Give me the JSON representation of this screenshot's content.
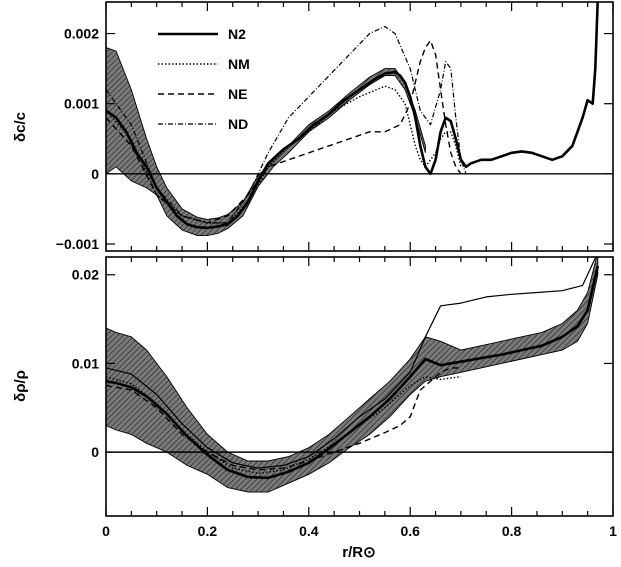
{
  "chart_data": [
    {
      "type": "line",
      "panel": "top",
      "ylabel": "δc/c",
      "ylim": [
        -0.0011,
        0.00245
      ],
      "yticks": [
        -0.001,
        0,
        0.001,
        0.002
      ],
      "ytick_labels": [
        "−0.001",
        "0",
        "0.001",
        "0.002"
      ],
      "zero_line": true,
      "legend": {
        "placement": "top-left",
        "entries": [
          "N2",
          "NM",
          "NE",
          "ND"
        ]
      },
      "band": {
        "name": "N2 uncertainty",
        "x": [
          0.0,
          0.02,
          0.05,
          0.08,
          0.1,
          0.12,
          0.15,
          0.18,
          0.2,
          0.22,
          0.24,
          0.27,
          0.3,
          0.33,
          0.36,
          0.4,
          0.44,
          0.48,
          0.52,
          0.55,
          0.57,
          0.59,
          0.61,
          0.63
        ],
        "upper": [
          0.0018,
          0.00175,
          0.0012,
          0.0005,
          0.0001,
          -0.0002,
          -0.0005,
          -0.00062,
          -0.00065,
          -0.00063,
          -0.00058,
          -0.0004,
          -3e-05,
          0.0002,
          0.0004,
          0.0007,
          0.0009,
          0.00115,
          0.00138,
          0.0015,
          0.0015,
          0.0013,
          0.0009,
          0.0004
        ],
        "lower": [
          0.0,
          0.0001,
          -0.0001,
          -0.0002,
          -0.0003,
          -0.0006,
          -0.0008,
          -0.00088,
          -0.00088,
          -0.00085,
          -0.00078,
          -0.0006,
          -0.00018,
          0.0001,
          0.0003,
          0.0006,
          0.0008,
          0.00105,
          0.00127,
          0.0014,
          0.0014,
          0.0012,
          0.0008,
          0.0003
        ]
      },
      "series": [
        {
          "name": "N2",
          "style": "solid-thick",
          "x": [
            0.0,
            0.02,
            0.04,
            0.06,
            0.08,
            0.1,
            0.12,
            0.14,
            0.16,
            0.18,
            0.2,
            0.22,
            0.24,
            0.26,
            0.28,
            0.3,
            0.32,
            0.35,
            0.38,
            0.41,
            0.44,
            0.47,
            0.5,
            0.53,
            0.55,
            0.57,
            0.58,
            0.59,
            0.6,
            0.61,
            0.62,
            0.63,
            0.64,
            0.65,
            0.66,
            0.67,
            0.68,
            0.69,
            0.7,
            0.71,
            0.72,
            0.74,
            0.76,
            0.78,
            0.8,
            0.82,
            0.84,
            0.86,
            0.88,
            0.9,
            0.92,
            0.94,
            0.95,
            0.96,
            0.965,
            0.97
          ],
          "y": [
            0.0009,
            0.0008,
            0.0006,
            0.0003,
            0.0001,
            -0.0002,
            -0.0004,
            -0.0006,
            -0.00072,
            -0.00076,
            -0.00077,
            -0.00075,
            -0.00072,
            -0.0006,
            -0.0004,
            -0.0001,
            0.00015,
            0.00035,
            0.0005,
            0.0007,
            0.00085,
            0.00105,
            0.0012,
            0.00135,
            0.00143,
            0.00145,
            0.0014,
            0.0013,
            0.0011,
            0.0008,
            0.0004,
            0.0001,
            0.0,
            0.0002,
            0.0006,
            0.0008,
            0.00075,
            0.0005,
            0.0002,
            0.0001,
            0.00015,
            0.0002,
            0.0002,
            0.00025,
            0.0003,
            0.00032,
            0.0003,
            0.00025,
            0.0002,
            0.00025,
            0.0004,
            0.0008,
            0.00105,
            0.001,
            0.0015,
            0.0025
          ]
        },
        {
          "name": "NM",
          "style": "dotted",
          "x": [
            0.0,
            0.05,
            0.1,
            0.15,
            0.2,
            0.24,
            0.28,
            0.32,
            0.36,
            0.4,
            0.45,
            0.5,
            0.55,
            0.57,
            0.59,
            0.61,
            0.62,
            0.63,
            0.64,
            0.65,
            0.66,
            0.67,
            0.68,
            0.69,
            0.7
          ],
          "y": [
            0.0009,
            0.0005,
            -0.0003,
            -0.0006,
            -0.0007,
            -0.0007,
            -0.0004,
            0.0001,
            0.0004,
            0.0006,
            0.0009,
            0.0011,
            0.00125,
            0.0012,
            0.001,
            0.0004,
            0.0002,
            0.0001,
            0.0002,
            0.0003,
            0.0005,
            0.0006,
            0.0006,
            0.0004,
            0.0001
          ]
        },
        {
          "name": "NE",
          "style": "dashed",
          "x": [
            0.0,
            0.05,
            0.1,
            0.15,
            0.2,
            0.24,
            0.28,
            0.32,
            0.36,
            0.4,
            0.44,
            0.48,
            0.52,
            0.55,
            0.58,
            0.6,
            0.62,
            0.63,
            0.64,
            0.65,
            0.66,
            0.67,
            0.68,
            0.69,
            0.7
          ],
          "y": [
            0.0008,
            0.0004,
            -0.0003,
            -0.0006,
            -0.0007,
            -0.0006,
            -0.0003,
            0.0001,
            0.0002,
            0.0003,
            0.0004,
            0.0005,
            0.0006,
            0.0006,
            0.0007,
            0.001,
            0.0016,
            0.0018,
            0.0019,
            0.0017,
            0.0012,
            0.0007,
            0.0003,
            0.0001,
            0.0
          ]
        },
        {
          "name": "ND",
          "style": "dash-dot",
          "x": [
            0.0,
            0.05,
            0.1,
            0.15,
            0.2,
            0.24,
            0.28,
            0.32,
            0.36,
            0.4,
            0.44,
            0.48,
            0.52,
            0.55,
            0.57,
            0.6,
            0.62,
            0.64,
            0.66,
            0.67,
            0.68,
            0.69,
            0.7,
            0.71
          ],
          "y": [
            0.0012,
            0.0007,
            -0.0002,
            -0.0006,
            -0.0007,
            -0.0007,
            -0.0003,
            0.0003,
            0.0008,
            0.0011,
            0.0014,
            0.0017,
            0.002,
            0.0021,
            0.002,
            0.0015,
            0.0009,
            0.0007,
            0.0012,
            0.0016,
            0.0015,
            0.0008,
            0.0002,
            0.0
          ]
        }
      ]
    },
    {
      "type": "line",
      "panel": "bottom",
      "xlabel": "r/R⊙",
      "ylabel": "δρ/ρ",
      "xlim": [
        0,
        1
      ],
      "xticks": [
        0,
        0.2,
        0.4,
        0.6,
        0.8,
        1
      ],
      "xtick_labels": [
        "0",
        "0.2",
        "0.4",
        "0.6",
        "0.8",
        "1"
      ],
      "ylim": [
        -0.0072,
        0.022
      ],
      "yticks": [
        0,
        0.01,
        0.02
      ],
      "ytick_labels": [
        "0",
        "0.01",
        "0.02"
      ],
      "zero_line": true,
      "band": {
        "name": "N2 uncertainty",
        "x": [
          0.0,
          0.02,
          0.05,
          0.08,
          0.12,
          0.16,
          0.2,
          0.24,
          0.28,
          0.32,
          0.36,
          0.4,
          0.44,
          0.48,
          0.52,
          0.56,
          0.6,
          0.63,
          0.66,
          0.7,
          0.74,
          0.78,
          0.82,
          0.86,
          0.9,
          0.93,
          0.95,
          0.97
        ],
        "upper": [
          0.014,
          0.0135,
          0.013,
          0.0115,
          0.0085,
          0.005,
          0.002,
          0.0,
          -0.001,
          -0.001,
          -0.0005,
          0.0005,
          0.002,
          0.004,
          0.006,
          0.008,
          0.0105,
          0.013,
          0.0125,
          0.0115,
          0.012,
          0.0125,
          0.013,
          0.0135,
          0.0145,
          0.016,
          0.018,
          0.0225
        ],
        "lower": [
          0.003,
          0.0025,
          0.002,
          0.001,
          0.0,
          -0.0015,
          -0.0025,
          -0.004,
          -0.0045,
          -0.0045,
          -0.0035,
          -0.0025,
          -0.0012,
          0.0005,
          0.002,
          0.004,
          0.0065,
          0.008,
          0.0085,
          0.009,
          0.0095,
          0.01,
          0.0105,
          0.011,
          0.0115,
          0.0125,
          0.0145,
          0.02
        ]
      },
      "series": [
        {
          "name": "N2",
          "style": "solid-thick",
          "x": [
            0.0,
            0.02,
            0.05,
            0.08,
            0.12,
            0.16,
            0.2,
            0.24,
            0.28,
            0.32,
            0.36,
            0.4,
            0.44,
            0.48,
            0.52,
            0.56,
            0.6,
            0.63,
            0.66,
            0.7,
            0.74,
            0.78,
            0.82,
            0.86,
            0.9,
            0.93,
            0.95,
            0.97
          ],
          "y": [
            0.008,
            0.0078,
            0.0073,
            0.0063,
            0.0043,
            0.0018,
            -0.0003,
            -0.002,
            -0.0028,
            -0.0029,
            -0.0022,
            -0.0012,
            0.0004,
            0.0022,
            0.004,
            0.006,
            0.0085,
            0.0105,
            0.0098,
            0.0102,
            0.0106,
            0.011,
            0.0115,
            0.012,
            0.013,
            0.0142,
            0.016,
            0.021
          ]
        },
        {
          "name": "NM",
          "style": "dotted",
          "x": [
            0.0,
            0.05,
            0.1,
            0.15,
            0.2,
            0.25,
            0.3,
            0.35,
            0.4,
            0.45,
            0.5,
            0.55,
            0.6,
            0.63,
            0.66,
            0.7
          ],
          "y": [
            0.0085,
            0.0077,
            0.0055,
            0.0025,
            0.0,
            -0.0018,
            -0.0024,
            -0.002,
            -0.0008,
            0.001,
            0.003,
            0.005,
            0.0075,
            0.0085,
            0.0082,
            0.0085
          ]
        },
        {
          "name": "NE",
          "style": "dashed",
          "x": [
            0.0,
            0.05,
            0.1,
            0.15,
            0.2,
            0.25,
            0.3,
            0.35,
            0.4,
            0.45,
            0.5,
            0.55,
            0.58,
            0.6,
            0.62,
            0.64,
            0.66,
            0.68,
            0.7
          ],
          "y": [
            0.0075,
            0.007,
            0.005,
            0.002,
            0.0,
            -0.0015,
            -0.002,
            -0.0018,
            -0.001,
            0.0,
            0.001,
            0.0022,
            0.003,
            0.004,
            0.007,
            0.008,
            0.009,
            0.0095,
            0.0095
          ]
        },
        {
          "name": "ND",
          "style": "thin-solid",
          "x": [
            0.0,
            0.05,
            0.1,
            0.15,
            0.2,
            0.25,
            0.3,
            0.35,
            0.4,
            0.45,
            0.5,
            0.55,
            0.6,
            0.63,
            0.66,
            0.7,
            0.75,
            0.8,
            0.85,
            0.9,
            0.94,
            0.97
          ],
          "y": [
            0.0095,
            0.0088,
            0.0065,
            0.0032,
            0.0005,
            -0.0012,
            -0.0018,
            -0.0015,
            -0.0005,
            0.0015,
            0.004,
            0.006,
            0.009,
            0.013,
            0.0165,
            0.0168,
            0.0175,
            0.0178,
            0.018,
            0.0182,
            0.0188,
            0.0225
          ]
        }
      ]
    }
  ]
}
